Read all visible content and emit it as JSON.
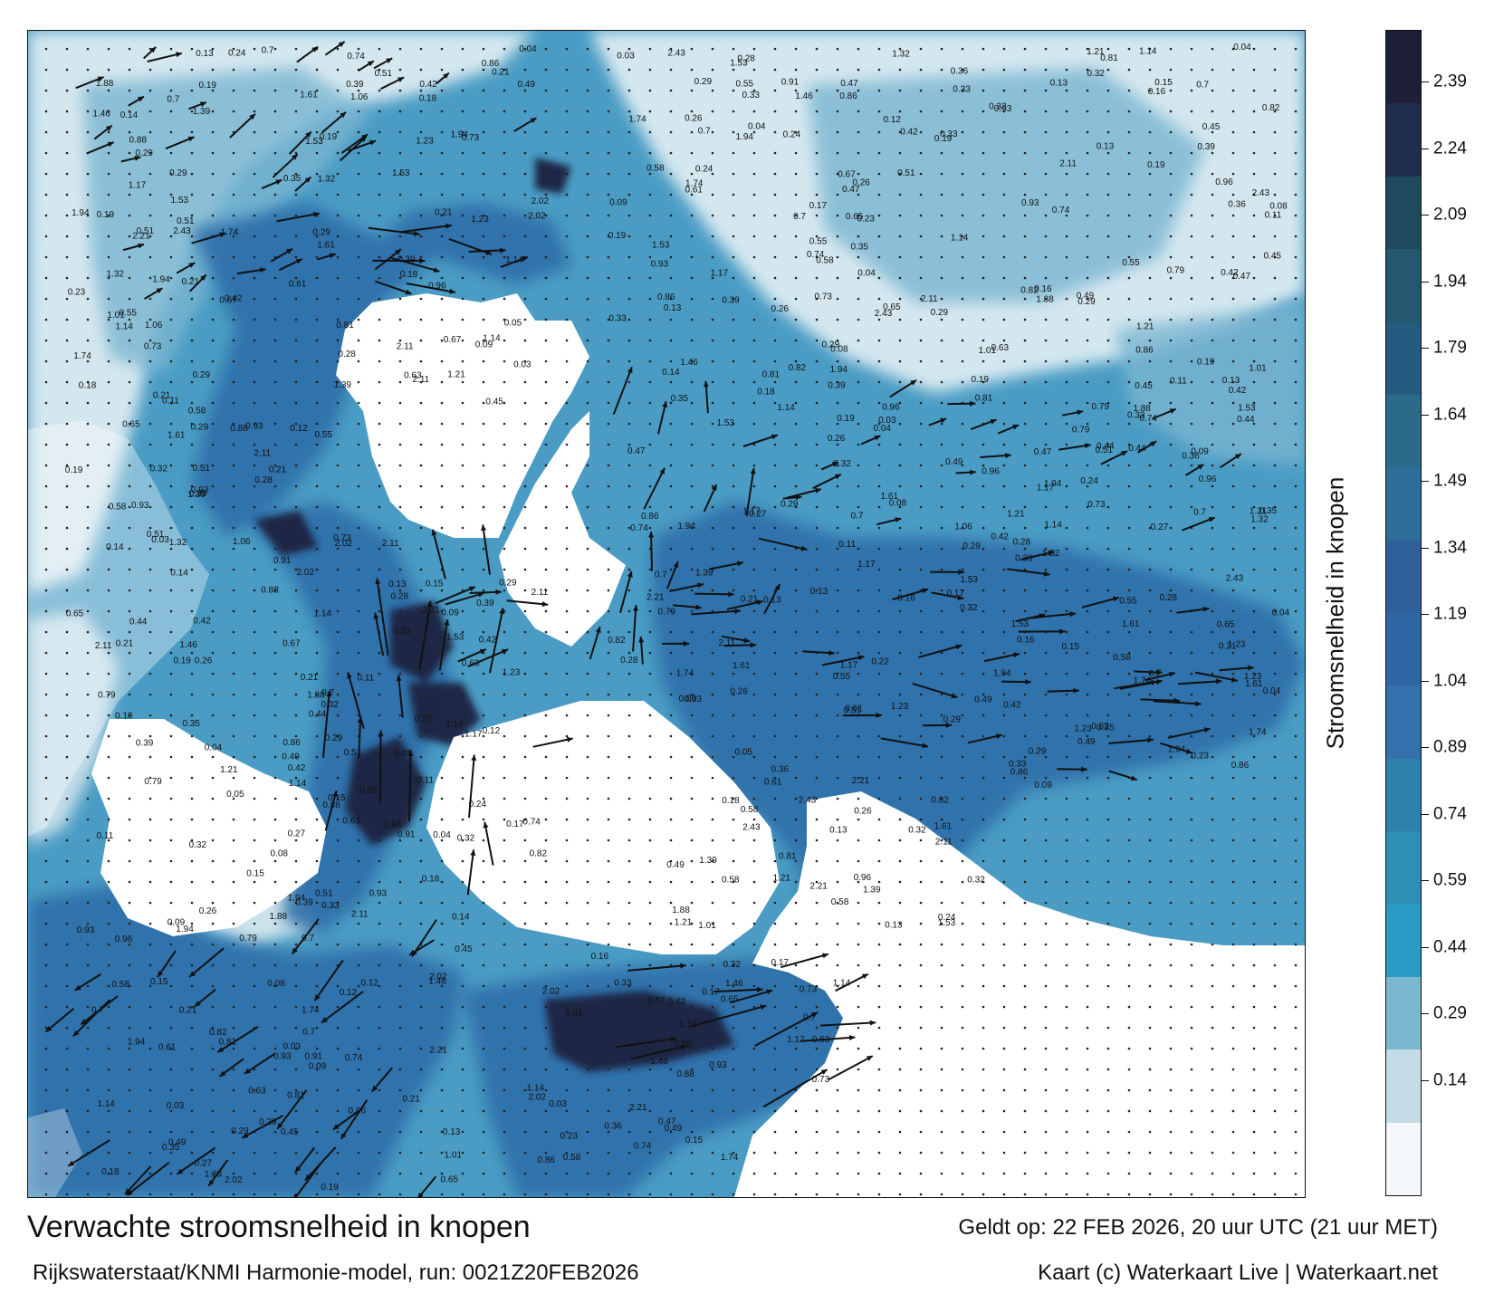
{
  "map": {
    "title": "Verwachte stroomsnelheid in knopen",
    "subtitle": "Rijkswaterstaat/KNMI Harmonie-model, run: 0021Z20FEB2026",
    "valid_time": "Geldt op: 22 FEB 2026, 20 uur UTC (21 uur MET)",
    "credit": "Kaart (c) Waterkaart Live | Waterkaart.net",
    "colorbar": {
      "title": "Stroomsnelheid in knopen",
      "ticks": [
        "2.39",
        "2.24",
        "2.09",
        "1.94",
        "1.79",
        "1.64",
        "1.49",
        "1.34",
        "1.19",
        "1.04",
        "0.89",
        "0.74",
        "0.59",
        "0.44",
        "0.29",
        "0.14"
      ],
      "colors": [
        "#1d1f38",
        "#1e2e4c",
        "#1f4a5e",
        "#23586e",
        "#255b7e",
        "#2c6a8a",
        "#2d6f98",
        "#2f5f99",
        "#2f66a3",
        "#3470aa",
        "#2f80ad",
        "#2d8fb5",
        "#2a9bc2",
        "#7bb7cf",
        "#c4dce6",
        "#f3f8fa"
      ]
    },
    "colors": {
      "land": "#ffffff",
      "shallow": "#d8e9f0",
      "medium": "#4f9fc4",
      "deep": "#2e6ea8",
      "fast": "#1b2540",
      "arrow": "#111111"
    },
    "speed_labels": [
      "0.51",
      "0.42",
      "0.28",
      "0.32",
      "0.39",
      "0.35",
      "0.44",
      "0.36",
      "0.26",
      "0.27",
      "0.19",
      "0.16",
      "0.33",
      "0.29",
      "0.22",
      "0.21",
      "0.18",
      "0.24",
      "0.23",
      "0.17",
      "0.15",
      "0.14",
      "0.12",
      "0.13",
      "0.11",
      "0.09",
      "0.08",
      "0.05",
      "0.04",
      "0.03",
      "0.47",
      "0.45",
      "0.49",
      "0.55",
      "0.58",
      "0.61",
      "0.63",
      "0.65",
      "0.67",
      "0.7",
      "0.73",
      "0.74",
      "0.79",
      "0.81",
      "0.82",
      "0.86",
      "0.88",
      "0.91",
      "0.93",
      "0.96",
      "1.01",
      "1.06",
      "1.14",
      "1.17",
      "1.21",
      "1.23",
      "1.32",
      "1.39",
      "1.46",
      "1.53",
      "1.61",
      "1.74",
      "1.88",
      "1.94",
      "2.02",
      "2.11",
      "2.21",
      "2.43"
    ]
  }
}
